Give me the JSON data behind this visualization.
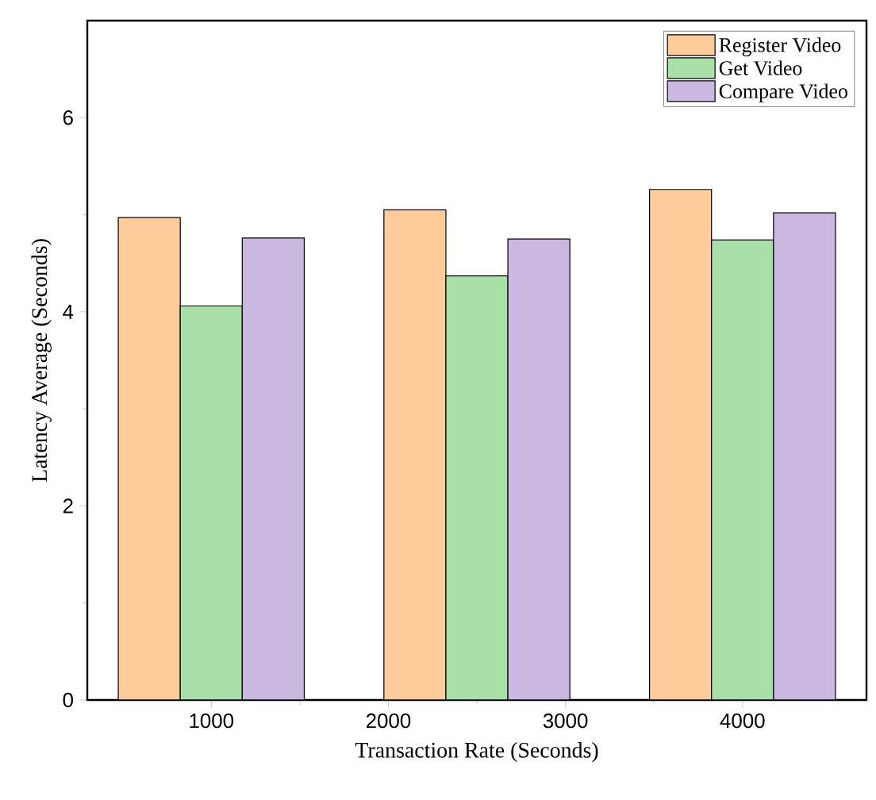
{
  "chart_data": {
    "type": "bar",
    "xlabel": "Transaction Rate (Seconds)",
    "ylabel": "Latency Average (Seconds)",
    "x": [
      1000,
      2500,
      4000
    ],
    "series": [
      {
        "name": "Register Video",
        "color": "#fdcc9a",
        "values": [
          4.97,
          5.05,
          5.26
        ]
      },
      {
        "name": "Get Video",
        "color": "#a8e0a8",
        "values": [
          4.06,
          4.37,
          4.74
        ]
      },
      {
        "name": "Compare Video",
        "color": "#cbb8e0",
        "values": [
          4.76,
          4.75,
          5.02
        ]
      }
    ],
    "xlim": [
      300,
      4700
    ],
    "xticks": [
      1000,
      2000,
      3000,
      4000
    ],
    "ylim": [
      0,
      7
    ],
    "yticks": [
      0,
      2,
      4,
      6
    ],
    "grid": false,
    "legend": "top right"
  }
}
